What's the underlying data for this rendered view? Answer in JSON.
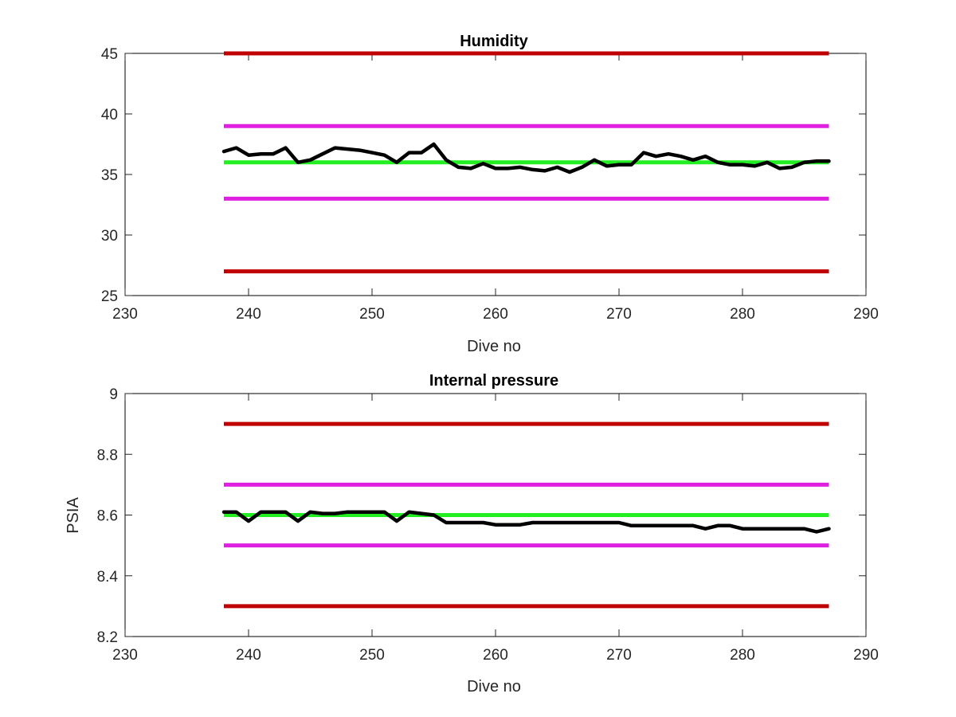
{
  "figure": {
    "background": "#ffffff",
    "colors": {
      "alarm_limit": "#c00000",
      "warning_limit": "#e020e0",
      "target": "#22ee22",
      "measured": "#000000"
    }
  },
  "chart_data": [
    {
      "type": "line",
      "title": "Humidity",
      "xlabel": "Dive no",
      "ylabel": "",
      "xlim": [
        230,
        290
      ],
      "ylim": [
        25,
        45
      ],
      "xticks": [
        230,
        240,
        250,
        260,
        270,
        280,
        290
      ],
      "yticks": [
        25,
        30,
        35,
        40,
        45
      ],
      "xtick_labels": [
        "230",
        "240",
        "250",
        "260",
        "270",
        "280",
        "290"
      ],
      "ytick_labels": [
        "25",
        "30",
        "35",
        "40",
        "45"
      ],
      "grid": false,
      "legend": "none",
      "reference_lines": [
        {
          "role": "upper alarm",
          "color": "#c00000",
          "x": [
            238,
            287
          ],
          "y": 45
        },
        {
          "role": "upper warning",
          "color": "#e020e0",
          "x": [
            238,
            287
          ],
          "y": 39
        },
        {
          "role": "target",
          "color": "#22ee22",
          "x": [
            238,
            287
          ],
          "y": 36
        },
        {
          "role": "lower warning",
          "color": "#e020e0",
          "x": [
            238,
            287
          ],
          "y": 33
        },
        {
          "role": "lower alarm",
          "color": "#c00000",
          "x": [
            238,
            287
          ],
          "y": 27
        }
      ],
      "series": [
        {
          "color": "#000000",
          "x": [
            238,
            239,
            240,
            241,
            242,
            243,
            244,
            245,
            246,
            247,
            248,
            249,
            250,
            251,
            252,
            253,
            254,
            255,
            256,
            257,
            258,
            259,
            260,
            261,
            262,
            263,
            264,
            265,
            266,
            267,
            268,
            269,
            270,
            271,
            272,
            273,
            274,
            275,
            276,
            277,
            278,
            279,
            280,
            281,
            282,
            283,
            284,
            285,
            286,
            287
          ],
          "y": [
            36.9,
            37.2,
            36.6,
            36.7,
            36.7,
            37.2,
            36.0,
            36.2,
            36.7,
            37.2,
            37.1,
            37.0,
            36.8,
            36.6,
            36.0,
            36.8,
            36.8,
            37.5,
            36.2,
            35.6,
            35.5,
            35.9,
            35.5,
            35.5,
            35.6,
            35.4,
            35.3,
            35.6,
            35.2,
            35.6,
            36.2,
            35.7,
            35.8,
            35.8,
            36.8,
            36.5,
            36.7,
            36.5,
            36.2,
            36.5,
            36.0,
            35.8,
            35.8,
            35.7,
            36.0,
            35.5,
            35.6,
            36.0,
            36.1,
            36.1
          ]
        }
      ]
    },
    {
      "type": "line",
      "title": "Internal pressure",
      "xlabel": "Dive no",
      "ylabel": "PSIA",
      "xlim": [
        230,
        290
      ],
      "ylim": [
        8.2,
        9
      ],
      "xticks": [
        230,
        240,
        250,
        260,
        270,
        280,
        290
      ],
      "yticks": [
        8.2,
        8.4,
        8.6,
        8.8,
        9
      ],
      "xtick_labels": [
        "230",
        "240",
        "250",
        "260",
        "270",
        "280",
        "290"
      ],
      "ytick_labels": [
        "8.2",
        "8.4",
        "8.6",
        "8.8",
        "9"
      ],
      "grid": false,
      "legend": "none",
      "reference_lines": [
        {
          "role": "upper alarm",
          "color": "#c00000",
          "x": [
            238,
            287
          ],
          "y": 8.9
        },
        {
          "role": "upper warning",
          "color": "#e020e0",
          "x": [
            238,
            287
          ],
          "y": 8.7
        },
        {
          "role": "target",
          "color": "#22ee22",
          "x": [
            238,
            287
          ],
          "y": 8.6
        },
        {
          "role": "lower warning",
          "color": "#e020e0",
          "x": [
            238,
            287
          ],
          "y": 8.5
        },
        {
          "role": "lower alarm",
          "color": "#c00000",
          "x": [
            238,
            287
          ],
          "y": 8.3
        }
      ],
      "series": [
        {
          "color": "#000000",
          "x": [
            238,
            239,
            240,
            241,
            242,
            243,
            244,
            245,
            246,
            247,
            248,
            249,
            250,
            251,
            252,
            253,
            254,
            255,
            256,
            257,
            258,
            259,
            260,
            261,
            262,
            263,
            264,
            265,
            266,
            267,
            268,
            269,
            270,
            271,
            272,
            273,
            274,
            275,
            276,
            277,
            278,
            279,
            280,
            281,
            282,
            283,
            284,
            285,
            286,
            287
          ],
          "y": [
            8.61,
            8.61,
            8.58,
            8.61,
            8.61,
            8.61,
            8.58,
            8.61,
            8.605,
            8.605,
            8.61,
            8.61,
            8.61,
            8.61,
            8.58,
            8.61,
            8.605,
            8.6,
            8.575,
            8.575,
            8.575,
            8.575,
            8.568,
            8.568,
            8.568,
            8.575,
            8.575,
            8.575,
            8.575,
            8.575,
            8.575,
            8.575,
            8.575,
            8.565,
            8.565,
            8.565,
            8.565,
            8.565,
            8.565,
            8.555,
            8.565,
            8.565,
            8.555,
            8.555,
            8.555,
            8.555,
            8.555,
            8.555,
            8.545,
            8.555
          ]
        }
      ]
    }
  ]
}
